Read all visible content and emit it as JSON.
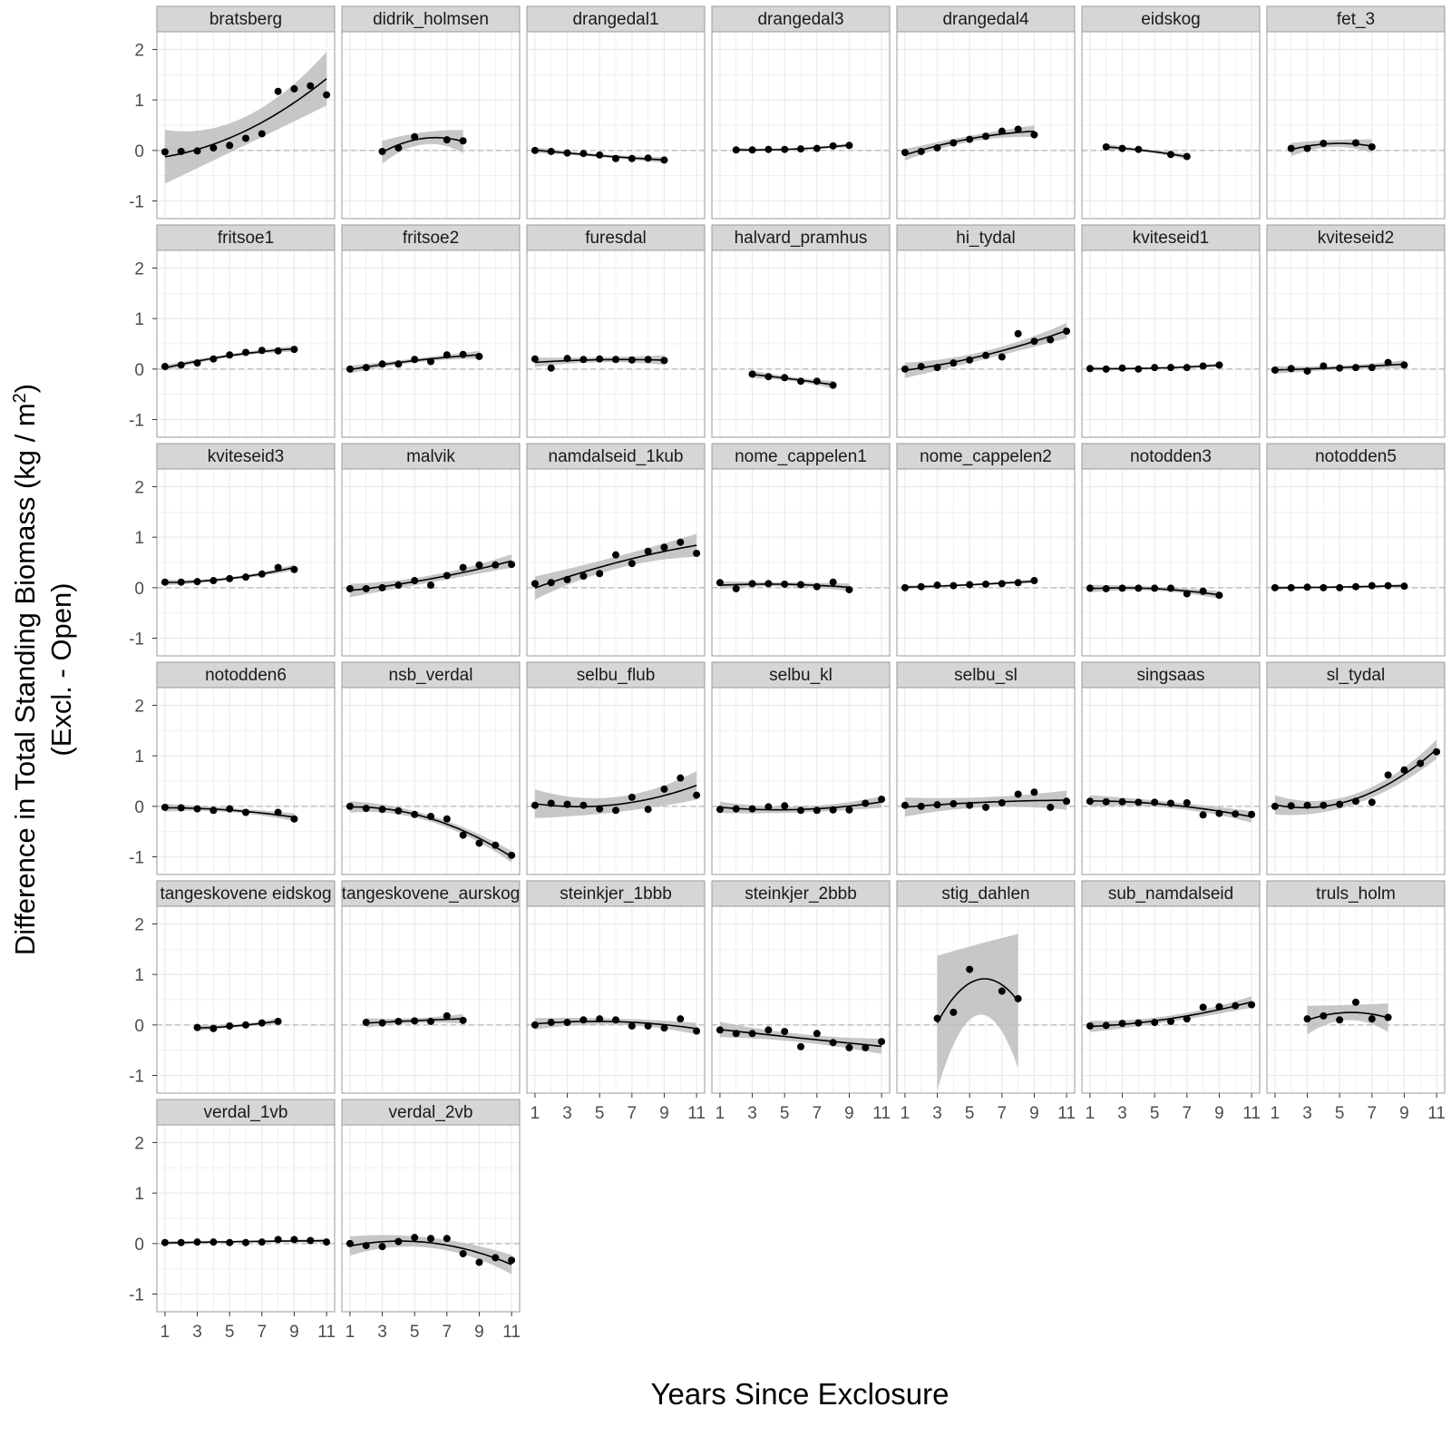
{
  "chart_data": {
    "type": "scatter",
    "xlabel": "Years Since Exclosure",
    "ylabel_line1": "Difference in Total Standing Biomass  (kg / m",
    "ylabel_sup": "2",
    "ylabel_close": ")",
    "ylabel_line2": "(Excl. - Open)",
    "xlim": [
      0.5,
      11.5
    ],
    "ylim": [
      -1.35,
      2.35
    ],
    "x_ticks": [
      1,
      3,
      5,
      7,
      9,
      11
    ],
    "y_ticks": [
      -1,
      0,
      1,
      2
    ],
    "reference_line": 0,
    "grid": true,
    "colors": {
      "points": "#000000",
      "fit": "#000000",
      "band": "#bdbdbd",
      "strip": "#d6d6d6",
      "grid": "#ebebeb",
      "border": "#9a9a9a"
    },
    "panels": [
      {
        "name": "bratsberg",
        "x": [
          1,
          2,
          3,
          4,
          5,
          6,
          7,
          8,
          9,
          10,
          11
        ],
        "y": [
          -0.03,
          -0.02,
          -0.01,
          0.05,
          0.1,
          0.24,
          0.33,
          1.17,
          1.22,
          1.28,
          1.1
        ],
        "se": 0.28
      },
      {
        "name": "didrik_holmsen",
        "x": [
          3,
          4,
          5,
          7,
          8
        ],
        "y": [
          -0.02,
          0.05,
          0.27,
          0.21,
          0.19
        ],
        "se": 0.12
      },
      {
        "name": "drangedal1",
        "x": [
          1,
          2,
          3,
          4,
          5,
          6,
          7,
          8,
          9
        ],
        "y": [
          0.0,
          -0.02,
          -0.05,
          -0.06,
          -0.09,
          -0.16,
          -0.16,
          -0.15,
          -0.19
        ],
        "se": 0.03
      },
      {
        "name": "drangedal3",
        "x": [
          2,
          3,
          4,
          5,
          6,
          7,
          8,
          9
        ],
        "y": [
          0.01,
          0.01,
          0.02,
          0.02,
          0.03,
          0.04,
          0.09,
          0.1
        ],
        "se": 0.02
      },
      {
        "name": "drangedal4",
        "x": [
          1,
          2,
          3,
          4,
          5,
          6,
          7,
          8,
          9
        ],
        "y": [
          -0.04,
          -0.02,
          0.05,
          0.15,
          0.22,
          0.28,
          0.38,
          0.42,
          0.31
        ],
        "se": 0.06
      },
      {
        "name": "eidskog",
        "x": [
          2,
          3,
          4,
          6,
          7
        ],
        "y": [
          0.07,
          0.04,
          0.02,
          -0.08,
          -0.12
        ],
        "se": 0.03
      },
      {
        "name": "fet_3",
        "x": [
          2,
          3,
          4,
          6,
          7
        ],
        "y": [
          0.04,
          0.04,
          0.14,
          0.15,
          0.07
        ],
        "se": 0.07
      },
      {
        "name": "fritsoe1",
        "x": [
          1,
          2,
          3,
          4,
          5,
          6,
          7,
          8,
          9
        ],
        "y": [
          0.05,
          0.08,
          0.12,
          0.2,
          0.28,
          0.33,
          0.37,
          0.36,
          0.39
        ],
        "se": 0.03
      },
      {
        "name": "fritsoe2",
        "x": [
          1,
          2,
          3,
          4,
          5,
          6,
          7,
          8,
          9
        ],
        "y": [
          0.0,
          0.03,
          0.1,
          0.1,
          0.19,
          0.15,
          0.28,
          0.29,
          0.25
        ],
        "se": 0.04
      },
      {
        "name": "furesdal",
        "x": [
          1,
          2,
          3,
          4,
          5,
          6,
          7,
          8,
          9
        ],
        "y": [
          0.2,
          0.02,
          0.21,
          0.19,
          0.2,
          0.19,
          0.18,
          0.19,
          0.17
        ],
        "se": 0.05
      },
      {
        "name": "halvard_pramhus",
        "x": [
          3,
          4,
          5,
          6,
          7,
          8
        ],
        "y": [
          -0.1,
          -0.15,
          -0.17,
          -0.24,
          -0.24,
          -0.32
        ],
        "se": 0.04
      },
      {
        "name": "hi_tydal",
        "x": [
          1,
          2,
          3,
          4,
          5,
          6,
          7,
          8,
          9,
          10,
          11
        ],
        "y": [
          0.0,
          0.05,
          0.03,
          0.12,
          0.18,
          0.27,
          0.24,
          0.7,
          0.55,
          0.58,
          0.75
        ],
        "se": 0.08
      },
      {
        "name": "kviteseid1",
        "x": [
          1,
          2,
          3,
          4,
          5,
          6,
          7,
          8,
          9
        ],
        "y": [
          0.01,
          0.0,
          0.02,
          0.0,
          0.03,
          0.03,
          0.03,
          0.06,
          0.08
        ],
        "se": 0.02
      },
      {
        "name": "kviteseid2",
        "x": [
          1,
          2,
          3,
          4,
          5,
          6,
          7,
          8,
          9
        ],
        "y": [
          -0.02,
          0.01,
          -0.04,
          0.06,
          0.02,
          0.03,
          0.03,
          0.13,
          0.08
        ],
        "se": 0.04
      },
      {
        "name": "kviteseid3",
        "x": [
          1,
          2,
          3,
          4,
          5,
          6,
          7,
          8,
          9
        ],
        "y": [
          0.11,
          0.11,
          0.12,
          0.14,
          0.18,
          0.21,
          0.27,
          0.4,
          0.36
        ],
        "se": 0.03
      },
      {
        "name": "malvik",
        "x": [
          1,
          2,
          3,
          4,
          5,
          6,
          7,
          8,
          9,
          10,
          11
        ],
        "y": [
          -0.02,
          -0.02,
          0.0,
          0.05,
          0.14,
          0.05,
          0.24,
          0.4,
          0.45,
          0.45,
          0.46
        ],
        "se": 0.07
      },
      {
        "name": "namdalseid_1kub",
        "x": [
          1,
          2,
          3,
          4,
          5,
          6,
          7,
          8,
          9,
          10,
          11
        ],
        "y": [
          0.08,
          0.1,
          0.16,
          0.23,
          0.28,
          0.65,
          0.48,
          0.72,
          0.8,
          0.9,
          0.68
        ],
        "se": 0.12
      },
      {
        "name": "nome_cappelen1",
        "x": [
          1,
          2,
          3,
          4,
          5,
          6,
          7,
          8,
          9
        ],
        "y": [
          0.1,
          -0.02,
          0.08,
          0.08,
          0.07,
          0.06,
          0.02,
          0.11,
          -0.04
        ],
        "se": 0.04
      },
      {
        "name": "nome_cappelen2",
        "x": [
          1,
          2,
          3,
          4,
          5,
          6,
          7,
          8,
          9
        ],
        "y": [
          0.0,
          0.02,
          0.05,
          0.04,
          0.06,
          0.07,
          0.08,
          0.1,
          0.14
        ],
        "se": 0.02
      },
      {
        "name": "notodden3",
        "x": [
          1,
          2,
          3,
          4,
          5,
          6,
          7,
          8,
          9
        ],
        "y": [
          -0.01,
          -0.02,
          -0.01,
          -0.01,
          -0.01,
          -0.01,
          -0.12,
          -0.07,
          -0.15
        ],
        "se": 0.04
      },
      {
        "name": "notodden5",
        "x": [
          1,
          2,
          3,
          4,
          5,
          6,
          7,
          8,
          9
        ],
        "y": [
          0.0,
          0.0,
          0.01,
          0.0,
          0.0,
          0.02,
          0.04,
          0.04,
          0.03
        ],
        "se": 0.02
      },
      {
        "name": "notodden6",
        "x": [
          1,
          2,
          3,
          4,
          5,
          6,
          8,
          9
        ],
        "y": [
          -0.02,
          -0.03,
          -0.05,
          -0.08,
          -0.05,
          -0.12,
          -0.12,
          -0.25
        ],
        "se": 0.04
      },
      {
        "name": "nsb_verdal",
        "x": [
          1,
          2,
          3,
          4,
          5,
          6,
          7,
          8,
          9,
          10,
          11
        ],
        "y": [
          0.0,
          -0.04,
          -0.06,
          -0.09,
          -0.16,
          -0.2,
          -0.25,
          -0.57,
          -0.73,
          -0.77,
          -0.97
        ],
        "se": 0.06
      },
      {
        "name": "selbu_flub",
        "x": [
          1,
          2,
          3,
          4,
          5,
          6,
          7,
          8,
          9,
          10,
          11
        ],
        "y": [
          0.02,
          0.06,
          0.04,
          0.02,
          -0.05,
          -0.08,
          0.18,
          -0.06,
          0.34,
          0.56,
          0.22
        ],
        "se": 0.15
      },
      {
        "name": "selbu_kl",
        "x": [
          1,
          2,
          3,
          4,
          5,
          6,
          7,
          8,
          9,
          10,
          11
        ],
        "y": [
          -0.06,
          -0.05,
          -0.05,
          -0.01,
          0.01,
          -0.08,
          -0.08,
          -0.07,
          -0.07,
          0.06,
          0.14
        ],
        "se": 0.06
      },
      {
        "name": "selbu_sl",
        "x": [
          1,
          2,
          3,
          4,
          5,
          6,
          7,
          8,
          9,
          10,
          11
        ],
        "y": [
          0.02,
          0.0,
          0.03,
          0.05,
          0.02,
          -0.02,
          0.07,
          0.24,
          0.28,
          -0.02,
          0.1
        ],
        "se": 0.1
      },
      {
        "name": "singsaas",
        "x": [
          1,
          2,
          3,
          4,
          5,
          6,
          7,
          8,
          9,
          10,
          11
        ],
        "y": [
          0.1,
          0.09,
          0.09,
          0.08,
          0.08,
          0.06,
          0.07,
          -0.17,
          -0.14,
          -0.15,
          -0.16
        ],
        "se": 0.06
      },
      {
        "name": "sl_tydal",
        "x": [
          1,
          2,
          3,
          4,
          5,
          6,
          7,
          8,
          9,
          10,
          11
        ],
        "y": [
          0.0,
          0.01,
          0.02,
          0.02,
          0.04,
          0.1,
          0.08,
          0.62,
          0.72,
          0.85,
          1.08
        ],
        "se": 0.1
      },
      {
        "name": "tangeskovene eidskog",
        "x": [
          3,
          4,
          5,
          6,
          7,
          8
        ],
        "y": [
          -0.05,
          -0.07,
          -0.02,
          0.0,
          0.04,
          0.07
        ],
        "se": 0.03
      },
      {
        "name": "tangeskovene_aurskog",
        "x": [
          2,
          3,
          4,
          5,
          6,
          7,
          8
        ],
        "y": [
          0.05,
          0.04,
          0.07,
          0.08,
          0.07,
          0.18,
          0.09
        ],
        "se": 0.05
      },
      {
        "name": "steinkjer_1bbb",
        "x": [
          1,
          2,
          3,
          4,
          5,
          6,
          7,
          8,
          9,
          10,
          11
        ],
        "y": [
          0.0,
          0.05,
          0.05,
          0.1,
          0.12,
          0.1,
          -0.02,
          -0.02,
          -0.06,
          0.12,
          -0.12
        ],
        "se": 0.06
      },
      {
        "name": "steinkjer_2bbb",
        "x": [
          1,
          2,
          3,
          4,
          5,
          6,
          7,
          8,
          9,
          10,
          11
        ],
        "y": [
          -0.1,
          -0.17,
          -0.17,
          -0.1,
          -0.13,
          -0.43,
          -0.17,
          -0.35,
          -0.45,
          -0.45,
          -0.33
        ],
        "se": 0.08
      },
      {
        "name": "stig_dahlen",
        "x": [
          3,
          4,
          5,
          7,
          8
        ],
        "y": [
          0.13,
          0.25,
          1.1,
          0.67,
          0.52
        ],
        "se": 0.7
      },
      {
        "name": "sub_namdalseid",
        "x": [
          1,
          2,
          3,
          4,
          5,
          6,
          7,
          8,
          9,
          10,
          11
        ],
        "y": [
          -0.02,
          -0.01,
          0.03,
          0.04,
          0.05,
          0.07,
          0.12,
          0.35,
          0.36,
          0.38,
          0.4
        ],
        "se": 0.06
      },
      {
        "name": "truls_holm",
        "x": [
          3,
          4,
          5,
          6,
          7,
          8
        ],
        "y": [
          0.12,
          0.18,
          0.1,
          0.45,
          0.12,
          0.15
        ],
        "se": 0.15
      },
      {
        "name": "verdal_1vb",
        "x": [
          1,
          2,
          3,
          4,
          5,
          6,
          7,
          8,
          9,
          10,
          11
        ],
        "y": [
          0.02,
          0.02,
          0.03,
          0.03,
          0.02,
          0.02,
          0.03,
          0.08,
          0.08,
          0.06,
          0.03
        ],
        "se": 0.02
      },
      {
        "name": "verdal_2vb",
        "x": [
          1,
          2,
          3,
          4,
          5,
          6,
          7,
          8,
          9,
          10,
          11
        ],
        "y": [
          0.0,
          -0.04,
          -0.06,
          0.04,
          0.12,
          0.1,
          0.1,
          -0.2,
          -0.37,
          -0.28,
          -0.33
        ],
        "se": 0.1
      }
    ]
  }
}
